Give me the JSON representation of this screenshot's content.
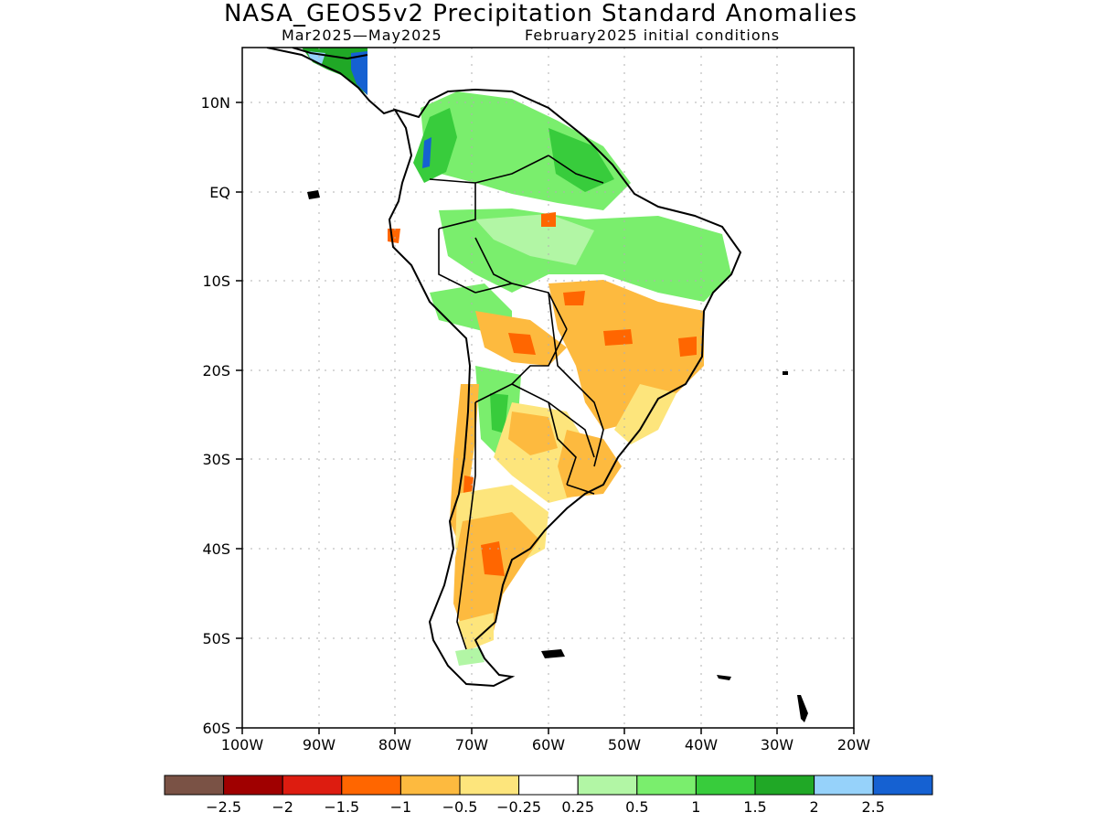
{
  "title": "NASA_GEOS5v2 Precipitation Standard Anomalies",
  "subtitle_left": "Mar2025—May2025",
  "subtitle_right": "February2025 initial conditions",
  "lat_labels": [
    "10N",
    "EQ",
    "10S",
    "20S",
    "30S",
    "40S",
    "50S",
    "60S"
  ],
  "lon_labels": [
    "100W",
    "90W",
    "80W",
    "70W",
    "60W",
    "50W",
    "40W",
    "30W",
    "20W"
  ],
  "legend_labels": [
    "−2.5",
    "−2",
    "−1.5",
    "−1",
    "−0.5",
    "−0.25",
    "0.25",
    "0.5",
    "1",
    "1.5",
    "2",
    "2.5"
  ],
  "legend_colors": [
    "#7a5245",
    "#a00000",
    "#dd1c10",
    "#ff6600",
    "#fdba3f",
    "#fde57c",
    "#ffffff",
    "#b2f6a5",
    "#7aee6d",
    "#38cc3c",
    "#20a826",
    "#96d2fa",
    "#1561d2"
  ],
  "colors": {
    "border": "#000000",
    "gridline": "#b0b0b0"
  }
}
